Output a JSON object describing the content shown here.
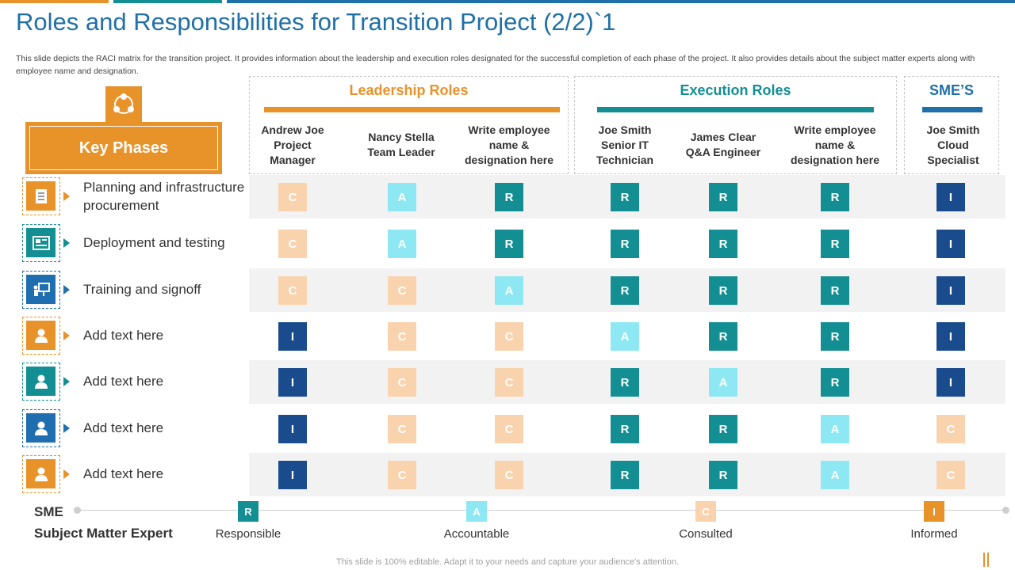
{
  "title": "Roles and Responsibilities for Transition Project (2/2)`1",
  "description": "This slide depicts the RACI matrix for the transition project. It provides information about the leadership and execution roles designated for the  successful completion of each phase of the  project. It also provides details about the subject matter experts  along with employee name  and designation.",
  "key_phases_label": "Key Phases",
  "groups": {
    "leadership": "Leadership  Roles",
    "execution": "Execution  Roles",
    "sme": "SME’S"
  },
  "columns": [
    "Andrew Joe\nProject\nManager",
    "Nancy Stella\nTeam Leader",
    "Write employee\nname &\ndesignation here",
    "Joe Smith\nSenior IT\nTechnician",
    "James Clear\nQ&A Engineer",
    "Write employee\nname &\ndesignation here",
    "Joe Smith\nCloud\nSpecialist"
  ],
  "rows": [
    {
      "label": "Planning and infrastructure procurement",
      "icon": "checklist-icon",
      "color": "#e8922a",
      "values": [
        "C",
        "A",
        "R",
        "R",
        "R",
        "R",
        "I"
      ]
    },
    {
      "label": "Deployment and testing",
      "icon": "blueprint-icon",
      "color": "#138f93",
      "values": [
        "C",
        "A",
        "R",
        "R",
        "R",
        "R",
        "I"
      ]
    },
    {
      "label": "Training and signoff",
      "icon": "presentation-icon",
      "color": "#1f6fb0",
      "values": [
        "C",
        "C",
        "A",
        "R",
        "R",
        "R",
        "I"
      ]
    },
    {
      "label": "Add text here",
      "icon": "person-icon",
      "color": "#e8922a",
      "values": [
        "I",
        "C",
        "C",
        "A",
        "R",
        "R",
        "I"
      ]
    },
    {
      "label": "Add text here",
      "icon": "person-icon",
      "color": "#138f93",
      "values": [
        "I",
        "C",
        "C",
        "R",
        "A",
        "R",
        "I"
      ]
    },
    {
      "label": "Add text here",
      "icon": "person-icon",
      "color": "#1f6fb0",
      "values": [
        "I",
        "C",
        "C",
        "R",
        "R",
        "A",
        "C"
      ]
    },
    {
      "label": "Add text here",
      "icon": "person-icon",
      "color": "#e8922a",
      "values": [
        "I",
        "C",
        "C",
        "R",
        "R",
        "A",
        "C"
      ]
    }
  ],
  "legend": {
    "sme": "SME",
    "sme_full": "Subject Matter Expert",
    "items": [
      {
        "code": "R",
        "label": "Responsible"
      },
      {
        "code": "A",
        "label": "Accountable"
      },
      {
        "code": "C",
        "label": "Consulted"
      },
      {
        "code": "I",
        "label": "Informed"
      }
    ]
  },
  "footer": "This slide is 100% editable. Adapt it to your needs and capture your audience's attention.",
  "colors": {
    "orange": "#e8922a",
    "teal": "#138f93",
    "blue": "#1f6fa8",
    "navy": "#1a4b8d",
    "cyan_light": "#8de8f3",
    "peach": "#f9d3ae"
  }
}
